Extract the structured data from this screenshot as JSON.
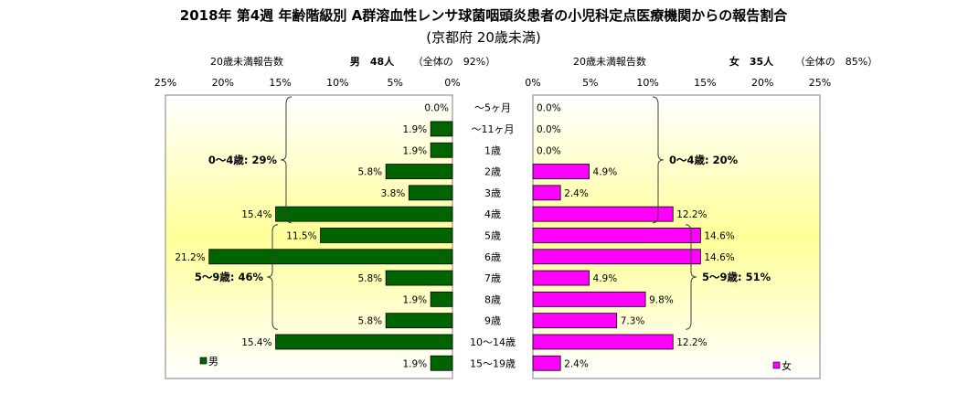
{
  "chart_data": {
    "type": "bar",
    "title": "2018年 第4週 年齢階級別 A群溶血性レンサ球菌咽頭炎患者の小児科定点医療機関からの報告割合",
    "subtitle": "(京都府 20歳未満)",
    "categories": [
      "～5ヶ月",
      "～11ヶ月",
      "1歳",
      "2歳",
      "3歳",
      "4歳",
      "5歳",
      "6歳",
      "7歳",
      "8歳",
      "9歳",
      "10～14歳",
      "15～19歳"
    ],
    "x_ticks": [
      "25%",
      "20%",
      "15%",
      "10%",
      "5%",
      "0%"
    ],
    "x_ticks_right": [
      "0%",
      "5%",
      "10%",
      "15%",
      "20%",
      "25%"
    ],
    "xlim": [
      0,
      25
    ],
    "left_panel": {
      "header_label": "20歳未満報告数",
      "header_count": "男　48人",
      "header_share": "（全体の　92%）",
      "legend": "男",
      "color": "#006400",
      "values": [
        0.0,
        1.9,
        1.9,
        5.8,
        3.8,
        15.4,
        11.5,
        21.2,
        5.8,
        1.9,
        5.8,
        15.4,
        1.9
      ],
      "labels": [
        "0.0%",
        "1.9%",
        "1.9%",
        "5.8%",
        "3.8%",
        "15.4%",
        "11.5%",
        "21.2%",
        "5.8%",
        "1.9%",
        "5.8%",
        "15.4%",
        "1.9%"
      ],
      "annotations": [
        {
          "text": "0～4歳: 29%",
          "from": 0,
          "to": 5
        },
        {
          "text": "5～9歳: 46%",
          "from": 6,
          "to": 10
        }
      ]
    },
    "right_panel": {
      "header_label": "20歳未満報告数",
      "header_count": "女　35人",
      "header_share": "（全体の　85%）",
      "legend": "女",
      "color": "#ff00ff",
      "values": [
        0.0,
        0.0,
        0.0,
        4.9,
        2.4,
        12.2,
        14.6,
        14.6,
        4.9,
        9.8,
        7.3,
        12.2,
        2.4
      ],
      "labels": [
        "0.0%",
        "0.0%",
        "0.0%",
        "4.9%",
        "2.4%",
        "12.2%",
        "14.6%",
        "14.6%",
        "4.9%",
        "9.8%",
        "7.3%",
        "12.2%",
        "2.4%"
      ],
      "annotations": [
        {
          "text": "0～4歳: 20%",
          "from": 0,
          "to": 5
        },
        {
          "text": "5～9歳: 51%",
          "from": 6,
          "to": 10
        }
      ]
    }
  }
}
